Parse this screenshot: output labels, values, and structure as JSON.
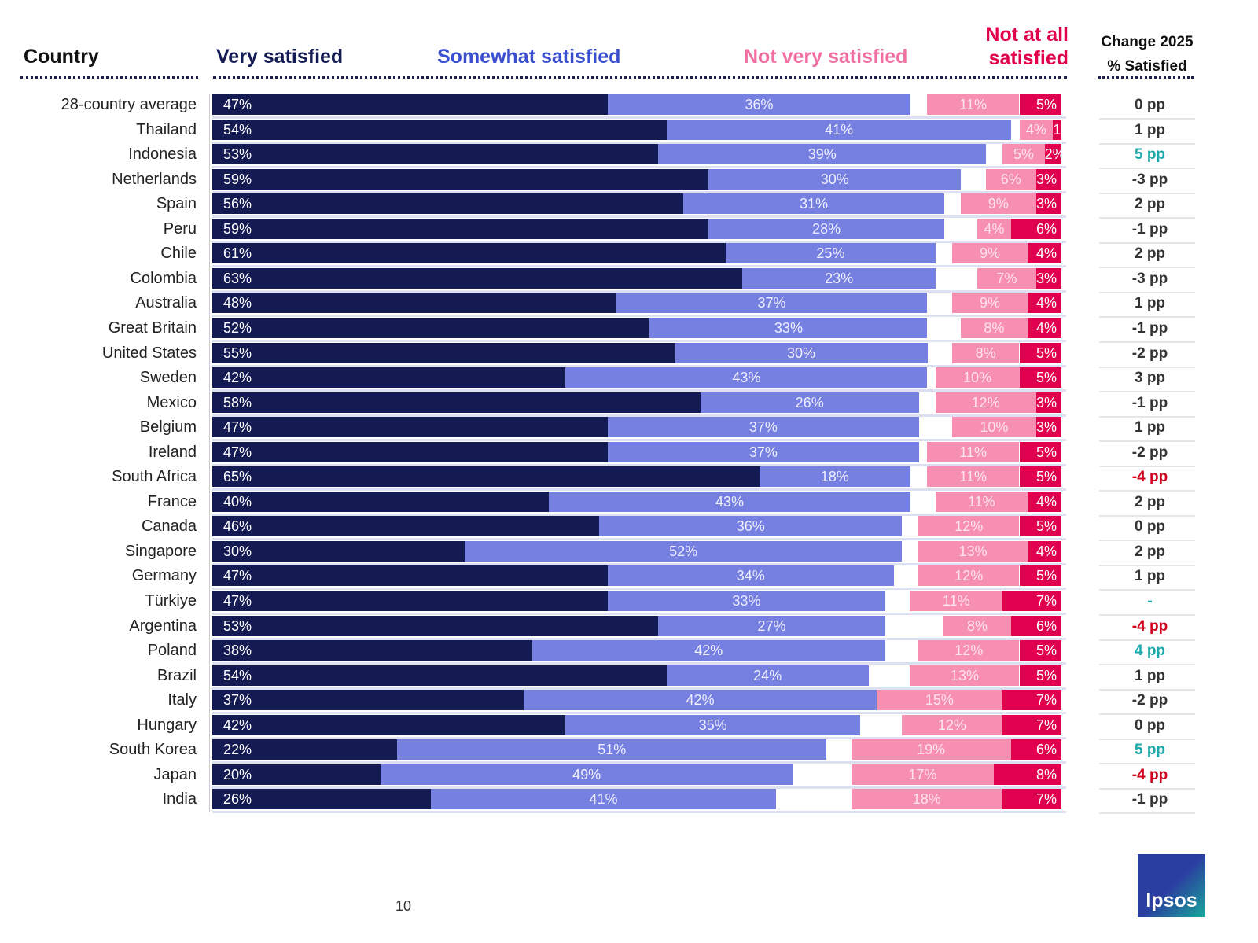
{
  "header": {
    "country": "Country",
    "very": "Very satisfied",
    "somewhat": "Somewhat satisfied",
    "not_very": "Not very satisfied",
    "not_at_all_1": "Not at all",
    "not_at_all_2": "satisfied",
    "change_1": "Change 2025",
    "change_2": "% Satisfied"
  },
  "colors": {
    "very": "#141a52",
    "somewhat": "#7680e0",
    "not_very": "#f78fb3",
    "not_at_all": "#e0004d",
    "change_up": "#1aa8a8",
    "change_down": "#d0021b",
    "header_somewhat": "#3a4ed0",
    "header_not_very": "#f06fa0",
    "header_not_at_all": "#e0004d"
  },
  "chart_data": {
    "type": "bar",
    "orientation": "horizontal-diverging-stacked",
    "categories": [
      "28-country average",
      "Thailand",
      "Indonesia",
      "Netherlands",
      "Spain",
      "Peru",
      "Chile",
      "Colombia",
      "Australia",
      "Great Britain",
      "United States",
      "Sweden",
      "Mexico",
      "Belgium",
      "Ireland",
      "South Africa",
      "France",
      "Canada",
      "Singapore",
      "Germany",
      "Türkiye",
      "Argentina",
      "Poland",
      "Brazil",
      "Italy",
      "Hungary",
      "South Korea",
      "Japan",
      "India"
    ],
    "series": [
      {
        "name": "Very satisfied",
        "values": [
          47,
          54,
          53,
          59,
          56,
          59,
          61,
          63,
          48,
          52,
          55,
          42,
          58,
          47,
          47,
          65,
          40,
          46,
          30,
          47,
          47,
          53,
          38,
          54,
          37,
          42,
          22,
          20,
          26
        ]
      },
      {
        "name": "Somewhat satisfied",
        "values": [
          36,
          41,
          39,
          30,
          31,
          28,
          25,
          23,
          37,
          33,
          30,
          43,
          26,
          37,
          37,
          18,
          43,
          36,
          52,
          34,
          33,
          27,
          42,
          24,
          42,
          35,
          51,
          49,
          41
        ]
      },
      {
        "name": "Not very satisfied",
        "values": [
          11,
          4,
          5,
          6,
          9,
          4,
          9,
          7,
          9,
          8,
          8,
          10,
          12,
          10,
          11,
          11,
          11,
          12,
          13,
          12,
          11,
          8,
          12,
          13,
          15,
          12,
          19,
          17,
          18
        ]
      },
      {
        "name": "Not at all satisfied",
        "values": [
          5,
          1,
          2,
          3,
          3,
          6,
          4,
          3,
          4,
          4,
          5,
          5,
          3,
          3,
          5,
          5,
          4,
          5,
          4,
          5,
          7,
          6,
          5,
          5,
          7,
          7,
          6,
          8,
          7
        ]
      }
    ],
    "change_2025": [
      "0 pp",
      "1 pp",
      "5 pp",
      "-3 pp",
      "2 pp",
      "-1 pp",
      "2 pp",
      "-3 pp",
      "1 pp",
      "-1 pp",
      "-2 pp",
      "3 pp",
      "-1 pp",
      "1 pp",
      "-2 pp",
      "-4 pp",
      "2 pp",
      "0 pp",
      "2 pp",
      "1 pp",
      "-",
      "-4 pp",
      "4 pp",
      "1 pp",
      "-2 pp",
      "0 pp",
      "5 pp",
      "-4 pp",
      "-1 pp"
    ],
    "value_suffix": "%"
  },
  "footer": {
    "page_number": "10",
    "logo": "Ipsos"
  }
}
